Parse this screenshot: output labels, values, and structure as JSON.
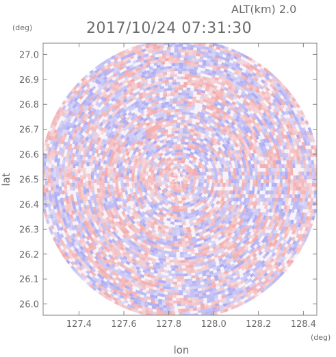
{
  "chart_data": {
    "type": "heatmap",
    "title": "2017/10/24 07:31:30",
    "altitude_label": "ALT(km)  2.0",
    "xlabel": "lon",
    "ylabel": "lat",
    "x_unit": "(deg)",
    "y_unit": "(deg)",
    "xlim": [
      127.24,
      128.46
    ],
    "ylim": [
      25.955,
      27.045
    ],
    "x_ticks": [
      127.4,
      127.6,
      127.8,
      128.0,
      128.2,
      128.4
    ],
    "x_tick_labels": [
      "127.4",
      "127.6",
      "127.8",
      "128.0",
      "128.2",
      "128.4"
    ],
    "y_ticks": [
      26.0,
      26.1,
      26.2,
      26.3,
      26.4,
      26.5,
      26.6,
      26.7,
      26.8,
      26.9,
      27.0
    ],
    "y_tick_labels": [
      "26.0",
      "26.1",
      "26.2",
      "26.3",
      "26.4",
      "26.5",
      "26.6",
      "26.7",
      "26.8",
      "26.9",
      "27.0"
    ],
    "radar_center": {
      "lon": 127.85,
      "lat": 26.5
    },
    "colors": {
      "positive": "#f08c8c",
      "negative": "#8c8cf0",
      "frame": "#808080",
      "text": "#6a6a6a"
    }
  }
}
